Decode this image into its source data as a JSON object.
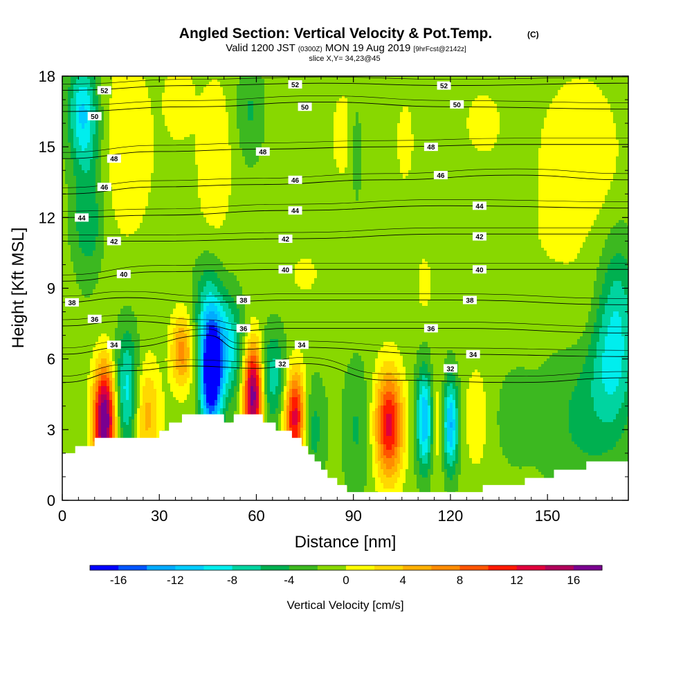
{
  "title": {
    "main": "Angled Section: Vertical Velocity & Pot.Temp.",
    "main_suffix": "(C)",
    "valid_prefix": "Valid 1200 JST",
    "valid_utc": "(0300Z)",
    "valid_date": "MON 19 Aug 2019",
    "forecast": "[9hrFcst@2142z]",
    "slice": "slice X,Y= 34,23@45"
  },
  "chart_data": {
    "type": "heatmap",
    "xlabel": "Distance [nm]",
    "ylabel": "Height [Kft MSL]",
    "xlim": [
      0,
      175
    ],
    "ylim": [
      0,
      18
    ],
    "x_ticks": [
      "0",
      "30",
      "60",
      "90",
      "120",
      "150"
    ],
    "x_tick_values": [
      0,
      30,
      60,
      90,
      120,
      150
    ],
    "y_ticks": [
      "0",
      "3",
      "6",
      "9",
      "12",
      "15",
      "18"
    ],
    "y_tick_values": [
      0,
      3,
      6,
      9,
      12,
      15,
      18
    ],
    "grid": false,
    "colorbar": {
      "label": "Vertical Velocity [cm/s]",
      "tick_labels": [
        "-16",
        "-12",
        "-8",
        "-4",
        "0",
        "4",
        "8",
        "12",
        "16"
      ],
      "tick_values": [
        -16,
        -12,
        -8,
        -4,
        0,
        4,
        8,
        12,
        16
      ],
      "levels": [
        -18,
        -16,
        -14,
        -12,
        -10,
        -8,
        -6,
        -4,
        -2,
        0,
        2,
        4,
        6,
        8,
        10,
        12,
        14,
        16,
        18
      ],
      "colors": [
        "#0000ff",
        "#0055ff",
        "#00aaff",
        "#00ccff",
        "#00eeee",
        "#00d4a0",
        "#00b050",
        "#3cb820",
        "#88d800",
        "#ffff00",
        "#ffd800",
        "#ffb000",
        "#ff8c00",
        "#ff5500",
        "#ff1a00",
        "#e0003c",
        "#b0005a",
        "#7a0090"
      ]
    },
    "terrain_kft": [
      {
        "x": 0,
        "z": 2.0
      },
      {
        "x": 4,
        "z": 2.0
      },
      {
        "x": 4,
        "z": 2.3
      },
      {
        "x": 10,
        "z": 2.3
      },
      {
        "x": 10,
        "z": 2.65
      },
      {
        "x": 30,
        "z": 2.65
      },
      {
        "x": 30,
        "z": 2.95
      },
      {
        "x": 33,
        "z": 2.95
      },
      {
        "x": 33,
        "z": 3.3
      },
      {
        "x": 37,
        "z": 3.3
      },
      {
        "x": 37,
        "z": 3.65
      },
      {
        "x": 50,
        "z": 3.65
      },
      {
        "x": 50,
        "z": 3.3
      },
      {
        "x": 53,
        "z": 3.3
      },
      {
        "x": 53,
        "z": 3.65
      },
      {
        "x": 62,
        "z": 3.65
      },
      {
        "x": 62,
        "z": 3.3
      },
      {
        "x": 66,
        "z": 3.3
      },
      {
        "x": 66,
        "z": 2.95
      },
      {
        "x": 71,
        "z": 2.95
      },
      {
        "x": 71,
        "z": 2.65
      },
      {
        "x": 74,
        "z": 2.65
      },
      {
        "x": 74,
        "z": 2.3
      },
      {
        "x": 76,
        "z": 2.3
      },
      {
        "x": 76,
        "z": 1.95
      },
      {
        "x": 78,
        "z": 1.95
      },
      {
        "x": 78,
        "z": 1.65
      },
      {
        "x": 80,
        "z": 1.65
      },
      {
        "x": 80,
        "z": 1.3
      },
      {
        "x": 82,
        "z": 1.3
      },
      {
        "x": 82,
        "z": 0.95
      },
      {
        "x": 85,
        "z": 0.95
      },
      {
        "x": 85,
        "z": 0.65
      },
      {
        "x": 88,
        "z": 0.65
      },
      {
        "x": 88,
        "z": 0.35
      },
      {
        "x": 130,
        "z": 0.35
      },
      {
        "x": 130,
        "z": 0.65
      },
      {
        "x": 143,
        "z": 0.65
      },
      {
        "x": 143,
        "z": 0.95
      },
      {
        "x": 152,
        "z": 0.95
      },
      {
        "x": 152,
        "z": 1.3
      },
      {
        "x": 162,
        "z": 1.3
      },
      {
        "x": 162,
        "z": 1.65
      },
      {
        "x": 175,
        "z": 1.65
      }
    ],
    "velocity_cells": [
      {
        "x": 13,
        "z": 3.4,
        "sx": 2.4,
        "sz": 1.6,
        "w": 20
      },
      {
        "x": 20,
        "z": 4.6,
        "sx": 2.6,
        "sz": 1.8,
        "w": -8
      },
      {
        "x": 26,
        "z": 3.6,
        "sx": 3.0,
        "sz": 1.6,
        "w": 6
      },
      {
        "x": 37,
        "z": 6.3,
        "sx": 2.4,
        "sz": 1.1,
        "w": 8
      },
      {
        "x": 46,
        "z": 5.3,
        "sx": 2.3,
        "sz": 1.6,
        "w": -20
      },
      {
        "x": 51,
        "z": 6.5,
        "sx": 3.5,
        "sz": 1.5,
        "w": -8
      },
      {
        "x": 59,
        "z": 4.5,
        "sx": 2.1,
        "sz": 1.5,
        "w": 19
      },
      {
        "x": 65,
        "z": 5.2,
        "sx": 3.0,
        "sz": 1.4,
        "w": -6
      },
      {
        "x": 72,
        "z": 3.5,
        "sx": 2.3,
        "sz": 1.4,
        "w": 15
      },
      {
        "x": 77,
        "z": 3.0,
        "sx": 3.0,
        "sz": 1.5,
        "w": -4
      },
      {
        "x": 91,
        "z": 3.0,
        "sx": 3.0,
        "sz": 2.0,
        "w": -3
      },
      {
        "x": 101,
        "z": 3.2,
        "sx": 3.0,
        "sz": 1.6,
        "w": 14
      },
      {
        "x": 112,
        "z": 3.4,
        "sx": 1.8,
        "sz": 1.5,
        "w": -11
      },
      {
        "x": 120,
        "z": 3.2,
        "sx": 1.7,
        "sz": 1.4,
        "w": -11
      },
      {
        "x": 116,
        "z": 3.3,
        "sx": 1.5,
        "sz": 1.8,
        "w": 3
      },
      {
        "x": 128,
        "z": 3.5,
        "sx": 2.5,
        "sz": 1.5,
        "w": 3
      },
      {
        "x": 140,
        "z": 3.5,
        "sx": 5.0,
        "sz": 1.7,
        "w": -1.5
      },
      {
        "x": 160,
        "z": 3.5,
        "sx": 8.0,
        "sz": 2.5,
        "w": -3
      },
      {
        "x": 170,
        "z": 5.8,
        "sx": 5.0,
        "sz": 2.2,
        "w": -6
      },
      {
        "x": 172,
        "z": 8.8,
        "sx": 4.0,
        "sz": 2.2,
        "w": -3.5
      },
      {
        "x": 6,
        "z": 16.5,
        "sx": 3.0,
        "sz": 1.4,
        "w": -7
      },
      {
        "x": 8,
        "z": 14.0,
        "sx": 3.5,
        "sz": 3.0,
        "w": -4
      },
      {
        "x": 20,
        "z": 15.0,
        "sx": 6.0,
        "sz": 2.8,
        "w": 3
      },
      {
        "x": 47,
        "z": 14.5,
        "sx": 4.0,
        "sz": 2.5,
        "w": 3
      },
      {
        "x": 58,
        "z": 16.5,
        "sx": 3.0,
        "sz": 1.5,
        "w": -3
      },
      {
        "x": 88,
        "z": 15.5,
        "sx": 5.0,
        "sz": 2.0,
        "w": 1.8
      },
      {
        "x": 91,
        "z": 15.0,
        "sx": 1.5,
        "sz": 1.8,
        "w": -3
      },
      {
        "x": 106,
        "z": 15.2,
        "sx": 3.0,
        "sz": 2.0,
        "w": 1.6
      },
      {
        "x": 130,
        "z": 16.0,
        "sx": 7.0,
        "sz": 1.8,
        "w": 1.5
      },
      {
        "x": 160,
        "z": 14.5,
        "sx": 9.0,
        "sz": 2.5,
        "w": 3
      },
      {
        "x": 36,
        "z": 17.0,
        "sx": 3.0,
        "sz": 1.2,
        "w": 3
      },
      {
        "x": 8,
        "z": 11.5,
        "sx": 3.0,
        "sz": 1.0,
        "w": -2
      },
      {
        "x": 45,
        "z": 8.2,
        "sx": 3.0,
        "sz": 1.5,
        "w": -5
      },
      {
        "x": 75,
        "z": 9.6,
        "sx": 5.0,
        "sz": 1.0,
        "w": 1.5
      },
      {
        "x": 112,
        "z": 9.2,
        "sx": 2.0,
        "sz": 1.0,
        "w": 2
      },
      {
        "x": 160,
        "z": 8.0,
        "sx": 5.0,
        "sz": 1.5,
        "w": 1.5
      },
      {
        "x": 152,
        "z": 11.5,
        "sx": 4.0,
        "sz": 1.0,
        "w": 1.5
      }
    ],
    "background_velocity": -1.2,
    "isentropes": [
      {
        "theta": 52,
        "points": [
          [
            0,
            17.4
          ],
          [
            40,
            17.6
          ],
          [
            80,
            17.7
          ],
          [
            120,
            17.6
          ],
          [
            175,
            17.7
          ]
        ],
        "labels": [
          [
            13,
            17.4
          ],
          [
            72,
            17.65
          ],
          [
            118,
            17.6
          ]
        ]
      },
      {
        "theta": 50,
        "points": [
          [
            0,
            16.5
          ],
          [
            40,
            16.7
          ],
          [
            80,
            16.9
          ],
          [
            120,
            16.7
          ],
          [
            175,
            16.6
          ]
        ],
        "labels": [
          [
            10,
            16.3
          ],
          [
            75,
            16.7
          ],
          [
            122,
            16.8
          ]
        ]
      },
      {
        "theta": 48,
        "points": [
          [
            0,
            14.5
          ],
          [
            30,
            14.8
          ],
          [
            60,
            14.9
          ],
          [
            100,
            15.0
          ],
          [
            140,
            15.1
          ],
          [
            175,
            15.1
          ]
        ],
        "labels": [
          [
            16,
            14.5
          ],
          [
            62,
            14.8
          ],
          [
            114,
            15.0
          ]
        ]
      },
      {
        "theta": 46,
        "points": [
          [
            0,
            13.0
          ],
          [
            30,
            13.3
          ],
          [
            60,
            13.4
          ],
          [
            100,
            13.6
          ],
          [
            140,
            13.8
          ],
          [
            175,
            13.6
          ]
        ],
        "labels": [
          [
            13,
            13.3
          ],
          [
            72,
            13.6
          ],
          [
            117,
            13.8
          ]
        ]
      },
      {
        "theta": 44,
        "points": [
          [
            0,
            12.0
          ],
          [
            30,
            12.1
          ],
          [
            70,
            12.3
          ],
          [
            120,
            12.5
          ],
          [
            175,
            12.4
          ]
        ],
        "labels": [
          [
            6,
            12.0
          ],
          [
            72,
            12.3
          ],
          [
            129,
            12.5
          ]
        ]
      },
      {
        "theta": 42,
        "points": [
          [
            0,
            11.0
          ],
          [
            30,
            11.0
          ],
          [
            70,
            11.1
          ],
          [
            120,
            11.3
          ],
          [
            175,
            11.3
          ]
        ],
        "labels": [
          [
            16,
            11.0
          ],
          [
            69,
            11.1
          ],
          [
            129,
            11.2
          ]
        ]
      },
      {
        "theta": 40,
        "points": [
          [
            0,
            9.3
          ],
          [
            30,
            9.7
          ],
          [
            70,
            9.8
          ],
          [
            120,
            9.8
          ],
          [
            175,
            9.8
          ]
        ],
        "labels": [
          [
            19,
            9.6
          ],
          [
            69,
            9.8
          ],
          [
            129,
            9.8
          ]
        ]
      },
      {
        "theta": 38,
        "points": [
          [
            0,
            8.4
          ],
          [
            20,
            8.6
          ],
          [
            45,
            8.4
          ],
          [
            70,
            8.5
          ],
          [
            120,
            8.5
          ],
          [
            175,
            8.3
          ]
        ],
        "labels": [
          [
            3,
            8.4
          ],
          [
            56,
            8.5
          ],
          [
            126,
            8.5
          ]
        ]
      },
      {
        "theta": 36,
        "points": [
          [
            0,
            7.4
          ],
          [
            20,
            7.6
          ],
          [
            45,
            7.4
          ],
          [
            55,
            7.2
          ],
          [
            70,
            7.3
          ],
          [
            120,
            7.3
          ],
          [
            175,
            7.1
          ]
        ],
        "labels": [
          [
            10,
            7.7
          ],
          [
            56,
            7.3
          ],
          [
            114,
            7.3
          ]
        ]
      },
      {
        "theta": 34,
        "points": [
          [
            0,
            6.2
          ],
          [
            20,
            6.5
          ],
          [
            45,
            7.0
          ],
          [
            55,
            6.4
          ],
          [
            70,
            6.5
          ],
          [
            120,
            6.2
          ],
          [
            175,
            6.1
          ]
        ],
        "labels": [
          [
            16,
            6.6
          ],
          [
            74,
            6.6
          ],
          [
            127,
            6.2
          ]
        ]
      },
      {
        "theta": 32,
        "points": [
          [
            0,
            5.0
          ],
          [
            20,
            5.5
          ],
          [
            40,
            5.7
          ],
          [
            60,
            5.6
          ],
          [
            75,
            5.8
          ],
          [
            100,
            5.1
          ],
          [
            140,
            5.0
          ],
          [
            175,
            5.2
          ]
        ],
        "labels": [
          [
            68,
            5.8
          ],
          [
            120,
            5.6
          ]
        ]
      }
    ]
  }
}
